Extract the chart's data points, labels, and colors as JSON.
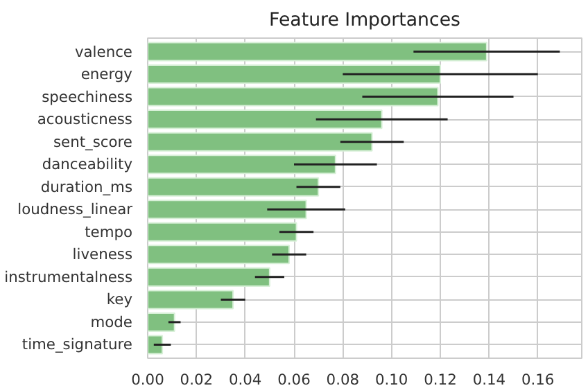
{
  "chart_data": {
    "type": "bar",
    "orientation": "horizontal",
    "title": "Feature Importances",
    "categories": [
      "valence",
      "energy",
      "speechiness",
      "acousticness",
      "sent_score",
      "danceability",
      "duration_ms",
      "loudness_linear",
      "tempo",
      "liveness",
      "instrumentalness",
      "key",
      "mode",
      "time_signature"
    ],
    "values": [
      0.139,
      0.12,
      0.119,
      0.096,
      0.092,
      0.077,
      0.07,
      0.065,
      0.061,
      0.058,
      0.05,
      0.035,
      0.011,
      0.006
    ],
    "errors": [
      0.03,
      0.04,
      0.031,
      0.027,
      0.013,
      0.017,
      0.009,
      0.016,
      0.007,
      0.007,
      0.006,
      0.005,
      0.0025,
      0.0035
    ],
    "color": "#80c080",
    "xlim": [
      0,
      0.178
    ],
    "xticks": [
      {
        "value": 0,
        "label": "0.00"
      },
      {
        "value": 0.02,
        "label": "0.02"
      },
      {
        "value": 0.04,
        "label": "0.04"
      },
      {
        "value": 0.06,
        "label": "0.06"
      },
      {
        "value": 0.08,
        "label": "0.08"
      },
      {
        "value": 0.1,
        "label": "0.10"
      },
      {
        "value": 0.12,
        "label": "0.12"
      },
      {
        "value": 0.14,
        "label": "0.14"
      },
      {
        "value": 0.16,
        "label": "0.16"
      }
    ],
    "grid": true
  }
}
